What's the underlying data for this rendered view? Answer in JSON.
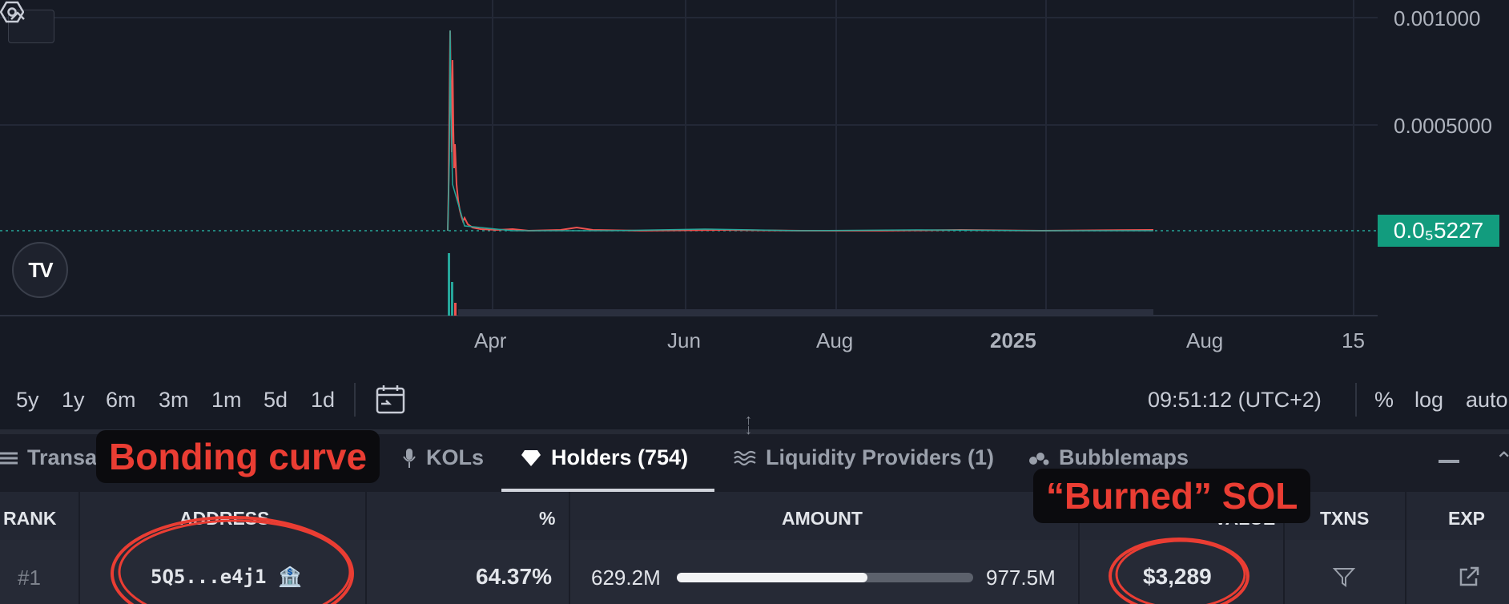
{
  "chart": {
    "y_axis_labels": [
      "0.001000",
      "0.0005000"
    ],
    "current_price": "0.0₅5227",
    "x_axis_labels": [
      "Apr",
      "Jun",
      "Aug",
      "2025",
      "Aug",
      "15"
    ],
    "colors": {
      "up": "#26a69a",
      "down": "#ef5350",
      "price_tag": "#129c7e",
      "background": "#161a24"
    }
  },
  "icons": {
    "collapse": "chevron-up-icon",
    "logo": "tradingview-logo",
    "settings": "settings-hexagon-icon",
    "calendar": "calendar-goto-icon"
  },
  "toolbar": {
    "timeframes": [
      "5y",
      "1y",
      "6m",
      "3m",
      "1m",
      "5d",
      "1d"
    ],
    "time": "09:51:12 (UTC+2)",
    "percent": "%",
    "log": "log",
    "auto": "auto"
  },
  "tabs": {
    "transactions": "Transa",
    "kols": "KOLs",
    "holders": "Holders (754)",
    "liquidity": "Liquidity Providers (1)",
    "bubblemaps": "Bubblemaps"
  },
  "table": {
    "headers": {
      "rank": "RANK",
      "address": "ADDRESS",
      "percent": "%",
      "amount": "AMOUNT",
      "value": "VALUE",
      "txns": "TXNS",
      "exp": "EXP"
    },
    "rows": [
      {
        "rank": "#1",
        "address": "5Q5...e4j1",
        "address_icon": "🏦",
        "percent": "64.37%",
        "amount": "629.2M",
        "amount_total": "977.5M",
        "amount_fraction": 0.6437,
        "value": "$3,289"
      }
    ]
  },
  "annotations": {
    "bonding_curve": "Bonding curve",
    "burned_sol": "“Burned” SOL",
    "color": "#ea3d33"
  }
}
